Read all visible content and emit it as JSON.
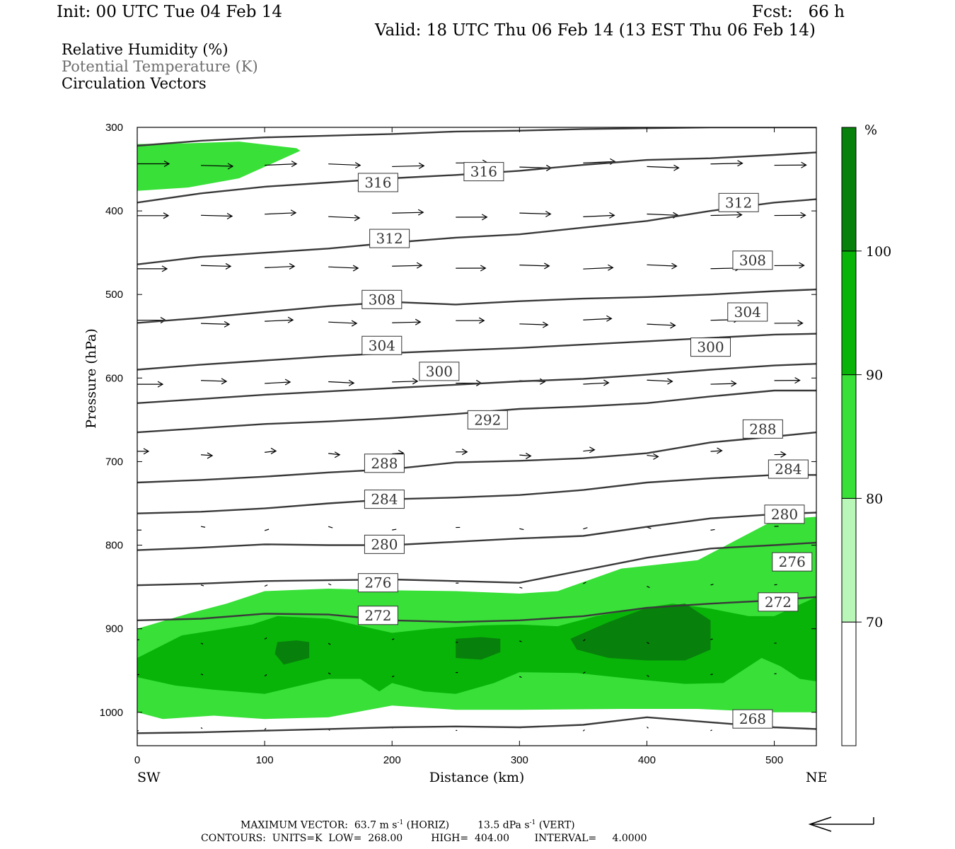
{
  "header": {
    "init": "Init: 00 UTC Tue 04 Feb 14",
    "fcst": "Fcst:   66 h",
    "valid": "Valid: 18 UTC Thu 06 Feb 14 (13 EST Thu 06 Feb 14)"
  },
  "fields": {
    "rh": "Relative Humidity (%)",
    "theta": "Potential Temperature (K)",
    "vectors": "Circulation Vectors"
  },
  "chart_data": {
    "type": "cross-section",
    "xlabel": "Distance (km)",
    "ylabel": "Pressure (hPa)",
    "xlim": [
      0,
      533
    ],
    "ylim": [
      1040,
      300
    ],
    "x_ticks": [
      0,
      100,
      200,
      300,
      400,
      500
    ],
    "y_ticks": [
      300,
      400,
      500,
      600,
      700,
      800,
      900,
      1000
    ],
    "x_end_labels": {
      "left": "SW",
      "right": "NE"
    },
    "colorbar": {
      "unit": "%",
      "levels": [
        70,
        80,
        90,
        100
      ],
      "colors": [
        "#ffffff",
        "#b9f7b9",
        "#38e038",
        "#08b408",
        "#08800c"
      ]
    },
    "theta_contours": [
      {
        "value": 268,
        "x": [
          0,
          50,
          100,
          150,
          200,
          250,
          300,
          350,
          400,
          450,
          500,
          533
        ],
        "p": [
          1025,
          1024,
          1022,
          1020,
          1018,
          1017,
          1018,
          1015,
          1006,
          1012,
          1018,
          1020
        ]
      },
      {
        "value": 272,
        "x": [
          0,
          50,
          100,
          150,
          200,
          250,
          300,
          350,
          400,
          450,
          500,
          533
        ],
        "p": [
          890,
          888,
          882,
          883,
          890,
          892,
          890,
          885,
          875,
          870,
          866,
          862
        ]
      },
      {
        "value": 276,
        "x": [
          0,
          50,
          100,
          150,
          200,
          250,
          300,
          350,
          400,
          450,
          500,
          533
        ],
        "p": [
          848,
          846,
          843,
          842,
          841,
          843,
          845,
          830,
          815,
          804,
          800,
          797
        ]
      },
      {
        "value": 280,
        "x": [
          0,
          50,
          100,
          150,
          200,
          250,
          300,
          350,
          400,
          450,
          500,
          533
        ],
        "p": [
          806,
          803,
          799,
          800,
          800,
          796,
          792,
          789,
          778,
          768,
          763,
          761
        ]
      },
      {
        "value": 284,
        "x": [
          0,
          50,
          100,
          150,
          200,
          250,
          300,
          350,
          400,
          450,
          500,
          533
        ],
        "p": [
          762,
          760,
          756,
          750,
          745,
          743,
          740,
          734,
          725,
          720,
          716,
          716
        ]
      },
      {
        "value": 288,
        "x": [
          0,
          50,
          100,
          150,
          200,
          250,
          300,
          350,
          400,
          450,
          500,
          533
        ],
        "p": [
          725,
          722,
          718,
          713,
          709,
          701,
          699,
          696,
          690,
          677,
          670,
          665
        ]
      },
      {
        "value": 292,
        "x": [
          0,
          50,
          100,
          150,
          200,
          250,
          300,
          350,
          400,
          450,
          500,
          533
        ],
        "p": [
          665,
          660,
          655,
          652,
          648,
          643,
          637,
          634,
          630,
          622,
          615,
          615
        ]
      },
      {
        "value": 296,
        "x": [
          0,
          50,
          100,
          150,
          200,
          250,
          300,
          350,
          400,
          450,
          500,
          533
        ],
        "p": [
          630,
          625,
          620,
          616,
          612,
          608,
          604,
          601,
          596,
          590,
          585,
          583
        ]
      },
      {
        "value": 300,
        "x": [
          0,
          50,
          100,
          150,
          200,
          250,
          300,
          350,
          400,
          450,
          500,
          533
        ],
        "p": [
          590,
          584,
          579,
          574,
          570,
          567,
          564,
          560,
          556,
          552,
          548,
          547
        ]
      },
      {
        "value": 304,
        "x": [
          0,
          50,
          100,
          150,
          200,
          250,
          300,
          350,
          400,
          450,
          500,
          533
        ],
        "p": [
          534,
          528,
          521,
          514,
          509,
          512,
          508,
          505,
          503,
          500,
          496,
          494
        ]
      },
      {
        "value": 308,
        "x": [
          0,
          50,
          100,
          150,
          200,
          250,
          300,
          350,
          400,
          450,
          500,
          533
        ],
        "p": [
          464,
          455,
          450,
          445,
          438,
          432,
          428,
          420,
          412,
          400,
          390,
          386
        ]
      },
      {
        "value": 312,
        "x": [
          0,
          50,
          100,
          150,
          200,
          250,
          300,
          350,
          400,
          450,
          500,
          533
        ],
        "p": [
          390,
          379,
          371,
          366,
          361,
          357,
          352,
          345,
          339,
          337,
          333,
          330
        ]
      },
      {
        "value": 316,
        "x": [
          0,
          50,
          100,
          150,
          200,
          250,
          300,
          350,
          400,
          450,
          500,
          533
        ],
        "p": [
          322,
          316,
          312,
          310,
          308,
          305,
          304,
          302,
          301,
          300,
          300,
          300
        ]
      }
    ],
    "contour_labels": [
      {
        "text": "316",
        "x": 189,
        "p": 366
      },
      {
        "text": "316",
        "x": 272,
        "p": 353
      },
      {
        "text": "312",
        "x": 472,
        "p": 390
      },
      {
        "text": "312",
        "x": 198,
        "p": 433
      },
      {
        "text": "308",
        "x": 483,
        "p": 459
      },
      {
        "text": "308",
        "x": 192,
        "p": 506
      },
      {
        "text": "304",
        "x": 479,
        "p": 521
      },
      {
        "text": "300",
        "x": 450,
        "p": 563
      },
      {
        "text": "304",
        "x": 192,
        "p": 561
      },
      {
        "text": "300",
        "x": 237,
        "p": 592
      },
      {
        "text": "292",
        "x": 275,
        "p": 650
      },
      {
        "text": "288",
        "x": 491,
        "p": 661
      },
      {
        "text": "288",
        "x": 194,
        "p": 702
      },
      {
        "text": "284",
        "x": 511,
        "p": 709
      },
      {
        "text": "284",
        "x": 194,
        "p": 745
      },
      {
        "text": "280",
        "x": 508,
        "p": 763
      },
      {
        "text": "280",
        "x": 194,
        "p": 799
      },
      {
        "text": "276",
        "x": 514,
        "p": 820
      },
      {
        "text": "276",
        "x": 189,
        "p": 845
      },
      {
        "text": "272",
        "x": 503,
        "p": 868
      },
      {
        "text": "272",
        "x": 189,
        "p": 884
      },
      {
        "text": "268",
        "x": 483,
        "p": 1008
      }
    ],
    "rh_regions": [
      {
        "level": 80,
        "x": [
          0,
          40,
          80,
          125,
          128,
          80,
          40,
          0
        ],
        "p": [
          320,
          319,
          317,
          325,
          328,
          361,
          372,
          376
        ]
      },
      {
        "level": 80,
        "x": [
          0,
          40,
          70,
          100,
          150,
          200,
          250,
          300,
          330,
          380,
          440,
          500,
          533,
          533,
          500,
          440,
          380,
          300,
          250,
          200,
          150,
          100,
          60,
          20,
          0
        ],
        "p": [
          900,
          882,
          870,
          855,
          852,
          854,
          855,
          858,
          855,
          828,
          818,
          770,
          766,
          1000,
          1000,
          996,
          996,
          997,
          997,
          992,
          1006,
          1008,
          1004,
          1008,
          1000
        ]
      },
      {
        "level": 90,
        "x": [
          0,
          35,
          90,
          110,
          150,
          200,
          230,
          270,
          300,
          330,
          360,
          390,
          420,
          450,
          480,
          500,
          533,
          533,
          520,
          505,
          490,
          460,
          430,
          395,
          345,
          300,
          280,
          250,
          225,
          200,
          190,
          175,
          150,
          100,
          60,
          30,
          0
        ],
        "p": [
          935,
          908,
          895,
          885,
          888,
          905,
          900,
          896,
          895,
          897,
          885,
          877,
          870,
          876,
          885,
          885,
          862,
          963,
          960,
          945,
          935,
          965,
          966,
          961,
          953,
          952,
          965,
          978,
          975,
          965,
          975,
          960,
          960,
          978,
          973,
          968,
          958
        ]
      },
      {
        "level": 100,
        "x": [
          110,
          125,
          135,
          135,
          115,
          108
        ],
        "p": [
          916,
          914,
          916,
          935,
          943,
          930
        ]
      },
      {
        "level": 100,
        "x": [
          250,
          270,
          285,
          285,
          270,
          250
        ],
        "p": [
          912,
          910,
          912,
          928,
          937,
          935
        ]
      },
      {
        "level": 100,
        "x": [
          340,
          370,
          400,
          430,
          450,
          450,
          430,
          400,
          370,
          345
        ],
        "p": [
          912,
          892,
          875,
          870,
          890,
          925,
          938,
          938,
          935,
          925
        ]
      }
    ],
    "vectors_annotation": {
      "max_vector": "MAXIMUM VECTOR:  63.7 m s",
      "horiz": "(HORIZ)",
      "vert": "13.5 dPa s",
      "vert_suffix": "(VERT)",
      "exponent": "-1"
    },
    "contours_info": "CONTOURS:  UNITS=K  LOW=  268.00         HIGH=  404.00        INTERVAL=     4.0000"
  }
}
